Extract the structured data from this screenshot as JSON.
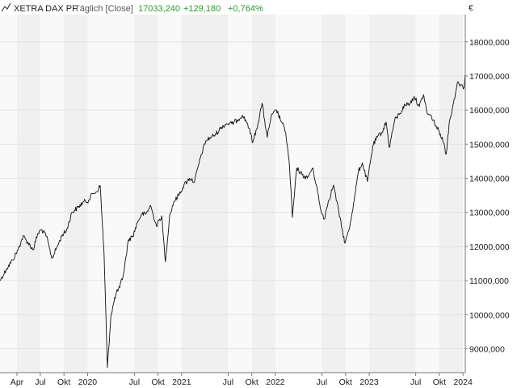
{
  "header": {
    "instrument": "XETRA DAX PF",
    "period": "Täglich [Close]",
    "last": "17033,240",
    "change": "+129,180",
    "change_pct": "+0,764%"
  },
  "colors": {
    "line": "#111111",
    "band_light": "#f9f9f9",
    "band_dark": "#f0f0f0",
    "grid": "#e2e2e2",
    "change": "#2a9d2a"
  },
  "chart_data": {
    "type": "line",
    "title": "XETRA DAX PF",
    "xlabel": "",
    "ylabel": "",
    "y_unit": "€",
    "ylim": [
      8300,
      18800
    ],
    "xlim": [
      "2019-01-25",
      "2024-01-10"
    ],
    "x_ticks": [
      {
        "label": "Apr",
        "date": "2019-04-01"
      },
      {
        "label": "Jul",
        "date": "2019-07-01"
      },
      {
        "label": "Okt",
        "date": "2019-10-01"
      },
      {
        "label": "2020",
        "date": "2020-01-01"
      },
      {
        "label": "Jul",
        "date": "2020-07-01"
      },
      {
        "label": "Okt",
        "date": "2020-10-01"
      },
      {
        "label": "2021",
        "date": "2021-01-01"
      },
      {
        "label": "Jul",
        "date": "2021-07-01"
      },
      {
        "label": "Okt",
        "date": "2021-10-01"
      },
      {
        "label": "2022",
        "date": "2022-01-01"
      },
      {
        "label": "Jul",
        "date": "2022-07-01"
      },
      {
        "label": "Okt",
        "date": "2022-10-01"
      },
      {
        "label": "2023",
        "date": "2023-01-01"
      },
      {
        "label": "Jul",
        "date": "2023-07-01"
      },
      {
        "label": "Okt",
        "date": "2023-10-01"
      },
      {
        "label": "2024",
        "date": "2024-01-01"
      }
    ],
    "y_ticks": [
      {
        "label": "9000,000",
        "value": 9000
      },
      {
        "label": "10000,000",
        "value": 10000
      },
      {
        "label": "11000,000",
        "value": 11000
      },
      {
        "label": "12000,000",
        "value": 12000
      },
      {
        "label": "13000,000",
        "value": 13000
      },
      {
        "label": "14000,000",
        "value": 14000
      },
      {
        "label": "15000,000",
        "value": 15000
      },
      {
        "label": "16000,000",
        "value": 16000
      },
      {
        "label": "17000,000",
        "value": 17000
      },
      {
        "label": "18000,000",
        "value": 18000
      }
    ],
    "grid": true,
    "series": [
      {
        "x": [
          "2019-01-25",
          "2019-02-20",
          "2019-03-15",
          "2019-04-05",
          "2019-04-25",
          "2019-05-15",
          "2019-06-03",
          "2019-06-20",
          "2019-07-05",
          "2019-07-25",
          "2019-08-15",
          "2019-09-05",
          "2019-09-25",
          "2019-10-10",
          "2019-11-01",
          "2019-11-25",
          "2019-12-15",
          "2020-01-05",
          "2020-01-20",
          "2020-02-05",
          "2020-02-19",
          "2020-03-05",
          "2020-03-18",
          "2020-04-01",
          "2020-04-20",
          "2020-05-05",
          "2020-05-20",
          "2020-06-08",
          "2020-06-25",
          "2020-07-15",
          "2020-07-31",
          "2020-08-15",
          "2020-09-02",
          "2020-09-25",
          "2020-10-15",
          "2020-10-30",
          "2020-11-15",
          "2020-12-01",
          "2020-12-20",
          "2021-01-10",
          "2021-02-01",
          "2021-02-20",
          "2021-03-15",
          "2021-04-05",
          "2021-04-25",
          "2021-05-15",
          "2021-06-05",
          "2021-06-25",
          "2021-07-15",
          "2021-08-05",
          "2021-08-25",
          "2021-09-15",
          "2021-10-05",
          "2021-10-25",
          "2021-11-10",
          "2021-11-30",
          "2021-12-15",
          "2022-01-05",
          "2022-01-25",
          "2022-02-10",
          "2022-02-25",
          "2022-03-08",
          "2022-03-25",
          "2022-04-15",
          "2022-05-05",
          "2022-05-25",
          "2022-06-10",
          "2022-06-25",
          "2022-07-10",
          "2022-07-25",
          "2022-08-15",
          "2022-09-05",
          "2022-09-20",
          "2022-09-29",
          "2022-10-15",
          "2022-11-01",
          "2022-11-20",
          "2022-12-05",
          "2022-12-25",
          "2023-01-15",
          "2023-02-01",
          "2023-02-20",
          "2023-03-08",
          "2023-03-20",
          "2023-04-10",
          "2023-04-30",
          "2023-05-20",
          "2023-06-10",
          "2023-06-25",
          "2023-07-15",
          "2023-07-31",
          "2023-08-15",
          "2023-09-01",
          "2023-09-20",
          "2023-10-05",
          "2023-10-20",
          "2023-10-27",
          "2023-11-10",
          "2023-11-25",
          "2023-12-10",
          "2023-12-25",
          "2024-01-05",
          "2024-01-09"
        ],
        "values": [
          11000,
          11350,
          11600,
          11900,
          12300,
          12100,
          11900,
          12350,
          12500,
          12300,
          11650,
          12000,
          12350,
          12450,
          13000,
          13150,
          13300,
          13350,
          13550,
          13600,
          13790,
          11800,
          8450,
          10000,
          10600,
          10800,
          11200,
          12200,
          12300,
          12750,
          12950,
          12950,
          13200,
          12600,
          12900,
          11550,
          12900,
          13300,
          13500,
          13800,
          14000,
          13900,
          14600,
          15100,
          15200,
          15300,
          15500,
          15600,
          15600,
          15700,
          15850,
          15600,
          15050,
          15600,
          16200,
          15200,
          15800,
          16000,
          15650,
          15350,
          14350,
          12850,
          14300,
          14100,
          14000,
          14300,
          13800,
          13100,
          12800,
          13300,
          13800,
          13000,
          12400,
          12100,
          12500,
          13250,
          14200,
          14450,
          13900,
          14950,
          15200,
          15350,
          15650,
          14900,
          15700,
          15900,
          16150,
          16200,
          16400,
          16100,
          16450,
          15900,
          15800,
          15500,
          15300,
          15000,
          14700,
          15700,
          16200,
          16800,
          16750,
          16650,
          17033
        ]
      }
    ]
  }
}
